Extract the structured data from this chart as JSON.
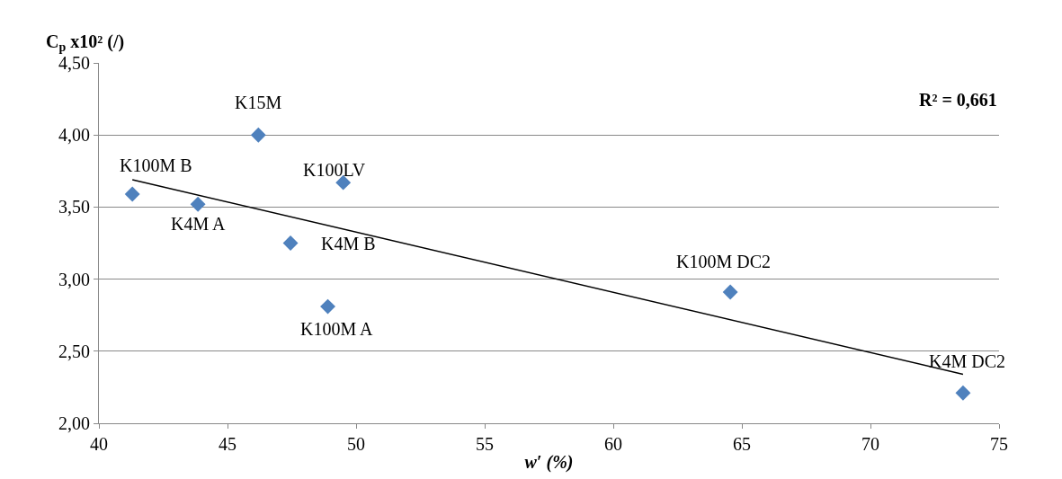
{
  "chart_data": {
    "type": "scatter",
    "xlabel": "w′ (%)",
    "ylabel": "C$_{p}$ x10² (/)",
    "series": [
      {
        "color": "#4f81bd",
        "marker": "diamond",
        "x": [
          41.3,
          43.85,
          46.2,
          49.5,
          47.45,
          48.9,
          64.55,
          73.6
        ],
        "values": [
          3.59,
          3.52,
          4.0,
          3.67,
          3.25,
          2.81,
          2.91,
          2.21
        ]
      },
      {
        "type": "line",
        "color": "#000000",
        "x": [
          41.3,
          73.6
        ],
        "values": [
          3.69,
          2.34
        ]
      }
    ],
    "annotations": [
      {
        "text": "K100M B",
        "x": 41.3,
        "y": 3.59
      },
      {
        "text": "K4M A",
        "x": 43.85,
        "y": 3.52
      },
      {
        "text": "K15M",
        "x": 46.2,
        "y": 4.0
      },
      {
        "text": "K100LV",
        "x": 49.5,
        "y": 3.67
      },
      {
        "text": "K4M B",
        "x": 47.45,
        "y": 3.25
      },
      {
        "text": "K100M A",
        "x": 48.9,
        "y": 2.81
      },
      {
        "text": "K100M DC2",
        "x": 64.55,
        "y": 2.91
      },
      {
        "text": "K4M DC2",
        "x": 73.6,
        "y": 2.21
      },
      "R² = 0,661"
    ],
    "xlim": [
      40,
      75
    ],
    "xticks": [
      40,
      45,
      50,
      55,
      60,
      65,
      70,
      75
    ],
    "ylim": [
      2.0,
      4.5
    ],
    "yticks": [
      {
        "value": 2.0,
        "label": "2,00"
      },
      {
        "value": 2.5,
        "label": "2,50"
      },
      {
        "value": 3.0,
        "label": "3,00"
      },
      {
        "value": 3.5,
        "label": "3,50"
      },
      {
        "value": 4.0,
        "label": "4,00"
      },
      {
        "value": 4.5,
        "label": "4,50"
      }
    ],
    "grid": "y",
    "legend": false
  }
}
